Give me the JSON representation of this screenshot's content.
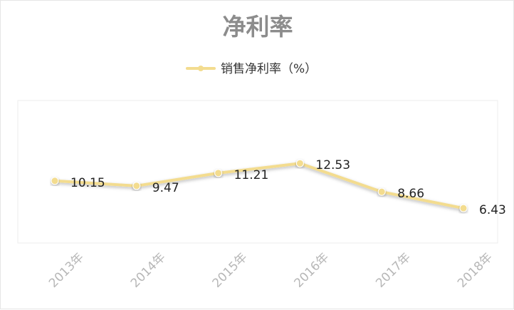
{
  "chart_data": {
    "type": "line",
    "title": "净利率",
    "x": [
      "2013年",
      "2014年",
      "2015年",
      "2016年",
      "2017年",
      "2018年"
    ],
    "series": [
      {
        "name": "销售净利率（%）",
        "values": [
          10.15,
          9.47,
          11.21,
          12.53,
          8.66,
          6.43
        ],
        "color": "#f3dc8f"
      }
    ],
    "ylim": [
      0,
      13
    ],
    "grid": false,
    "legend_position": "top-center"
  }
}
